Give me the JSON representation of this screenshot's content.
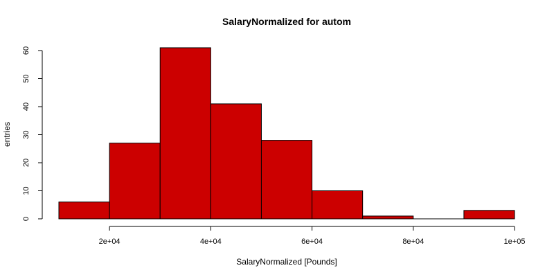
{
  "chart_data": {
    "type": "histogram",
    "title": "SalaryNormalized for autom",
    "xlabel": "SalaryNormalized [Pounds]",
    "ylabel": "entries",
    "bins": [
      {
        "from": 10000,
        "to": 20000,
        "count": 6
      },
      {
        "from": 20000,
        "to": 30000,
        "count": 27
      },
      {
        "from": 30000,
        "to": 40000,
        "count": 61
      },
      {
        "from": 40000,
        "to": 50000,
        "count": 41
      },
      {
        "from": 50000,
        "to": 60000,
        "count": 28
      },
      {
        "from": 60000,
        "to": 70000,
        "count": 10
      },
      {
        "from": 70000,
        "to": 80000,
        "count": 1
      },
      {
        "from": 80000,
        "to": 90000,
        "count": 0
      },
      {
        "from": 90000,
        "to": 100000,
        "count": 3
      }
    ],
    "xlim": [
      10000,
      100000
    ],
    "ylim": [
      0,
      60
    ],
    "x_ticks": [
      {
        "value": 20000,
        "label": "2e+04"
      },
      {
        "value": 40000,
        "label": "4e+04"
      },
      {
        "value": 60000,
        "label": "6e+04"
      },
      {
        "value": 80000,
        "label": "8e+04"
      },
      {
        "value": 100000,
        "label": "1e+05"
      }
    ],
    "y_ticks": [
      {
        "value": 0,
        "label": "0"
      },
      {
        "value": 10,
        "label": "10"
      },
      {
        "value": 20,
        "label": "20"
      },
      {
        "value": 30,
        "label": "30"
      },
      {
        "value": 40,
        "label": "40"
      },
      {
        "value": 50,
        "label": "50"
      },
      {
        "value": 60,
        "label": "60"
      }
    ],
    "bar_color": "#CC0000",
    "grid": false
  }
}
